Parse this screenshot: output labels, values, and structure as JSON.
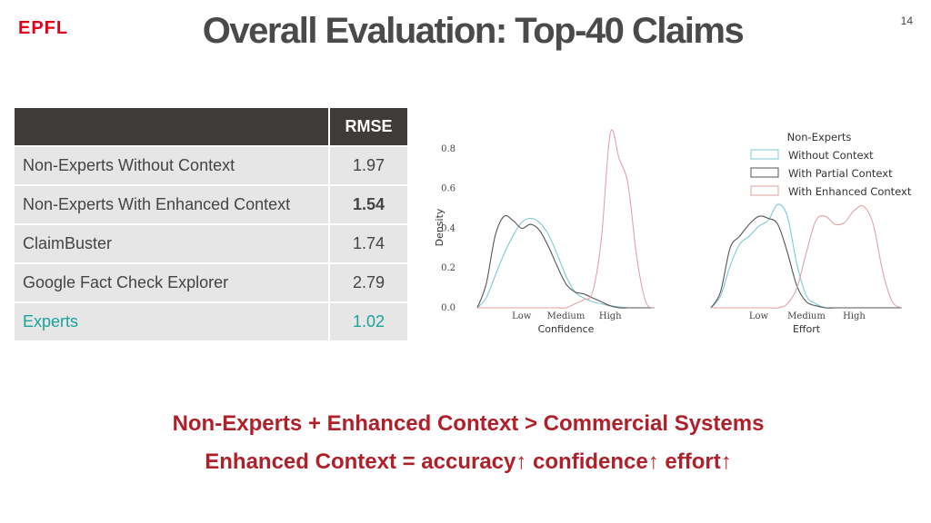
{
  "header": {
    "logo": "EPFL",
    "title": "Overall Evaluation: Top-40 Claims",
    "slide_number": "14"
  },
  "table": {
    "header": [
      "",
      "RMSE"
    ],
    "rows": [
      {
        "name": "Non-Experts Without Context",
        "rmse": "1.97"
      },
      {
        "name": "Non-Experts With Enhanced Context",
        "rmse": "1.54"
      },
      {
        "name": "ClaimBuster",
        "rmse": "1.74"
      },
      {
        "name": "Google Fact Check Explorer",
        "rmse": "2.79"
      },
      {
        "name": "Experts",
        "rmse": "1.02"
      }
    ]
  },
  "colors": {
    "without_context": "#7fc8d6",
    "partial_context": "#555555",
    "enhanced_context": "#e2a3a6",
    "experts_text": "#1aa39a",
    "conclusion_text": "#b0202a",
    "table_header_bg": "#3f3b39",
    "table_cell_bg": "#e6e6e6"
  },
  "chart_data": [
    {
      "type": "line",
      "subtype": "density",
      "xlabel": "Confidence",
      "ylabel": "Density",
      "x_ticks": [
        "Low",
        "Medium",
        "High"
      ],
      "y_ticks": [
        "0.0",
        "0.2",
        "0.4",
        "0.6",
        "0.8"
      ],
      "ylim": [
        0,
        0.9
      ],
      "xlim": [
        0,
        10
      ],
      "series": [
        {
          "name": "Without Context",
          "color": "#7fc8d6",
          "x": [
            0,
            0.5,
            1,
            1.5,
            2,
            2.5,
            3,
            3.5,
            4,
            4.5,
            5,
            5.5,
            6,
            6.5,
            7,
            7.5,
            8,
            8.5,
            9,
            9.5,
            10
          ],
          "y": [
            0.0,
            0.05,
            0.16,
            0.27,
            0.36,
            0.43,
            0.45,
            0.43,
            0.37,
            0.27,
            0.16,
            0.08,
            0.05,
            0.03,
            0.02,
            0.01,
            0.005,
            0.0,
            0.0,
            0.0,
            0.0
          ]
        },
        {
          "name": "With Partial Context",
          "color": "#555555",
          "x": [
            0,
            0.5,
            1,
            1.5,
            2,
            2.5,
            3,
            3.5,
            4,
            4.5,
            5,
            5.5,
            6,
            6.5,
            7,
            7.5,
            8,
            8.5,
            9,
            9.5,
            10
          ],
          "y": [
            0.0,
            0.12,
            0.36,
            0.46,
            0.44,
            0.4,
            0.42,
            0.39,
            0.31,
            0.21,
            0.12,
            0.08,
            0.07,
            0.05,
            0.03,
            0.01,
            0.0,
            0.0,
            0.0,
            0.0,
            0.0
          ]
        },
        {
          "name": "With Enhanced Context",
          "color": "#e2a3a6",
          "x": [
            0,
            0.5,
            1,
            1.5,
            2,
            2.5,
            3,
            3.5,
            4,
            4.5,
            5,
            5.5,
            6,
            6.5,
            7,
            7.5,
            8,
            8.5,
            9,
            9.5,
            10
          ],
          "y": [
            0.0,
            0.0,
            0.0,
            0.0,
            0.0,
            0.0,
            0.0,
            0.0,
            0.0,
            0.0,
            0.0,
            0.02,
            0.04,
            0.08,
            0.35,
            0.88,
            0.75,
            0.62,
            0.25,
            0.03,
            0.0
          ]
        }
      ]
    },
    {
      "type": "line",
      "subtype": "density",
      "xlabel": "Effort",
      "ylabel": "",
      "x_ticks": [
        "Low",
        "Medium",
        "High"
      ],
      "ylim": [
        0,
        0.9
      ],
      "xlim": [
        0,
        10
      ],
      "legend": {
        "title": "Non-Experts",
        "position": "top-right",
        "entries": [
          "Without Context",
          "With Partial Context",
          "With Enhanced Context"
        ]
      },
      "series": [
        {
          "name": "Without Context",
          "color": "#7fc8d6",
          "x": [
            0,
            0.5,
            1,
            1.5,
            2,
            2.5,
            3,
            3.5,
            4,
            4.5,
            5,
            5.5,
            6,
            6.5,
            7,
            7.5,
            8,
            8.5,
            9,
            9.5,
            10
          ],
          "y": [
            0.0,
            0.06,
            0.21,
            0.32,
            0.36,
            0.41,
            0.44,
            0.52,
            0.46,
            0.22,
            0.06,
            0.02,
            0.0,
            0.0,
            0.0,
            0.0,
            0.0,
            0.0,
            0.0,
            0.0,
            0.0
          ]
        },
        {
          "name": "With Partial Context",
          "color": "#555555",
          "x": [
            0,
            0.5,
            1,
            1.5,
            2,
            2.5,
            3,
            3.5,
            4,
            4.5,
            5,
            5.5,
            6,
            6.5,
            7,
            7.5,
            8,
            8.5,
            9,
            9.5,
            10
          ],
          "y": [
            0.0,
            0.08,
            0.3,
            0.36,
            0.42,
            0.46,
            0.45,
            0.42,
            0.28,
            0.11,
            0.03,
            0.01,
            0.0,
            0.0,
            0.0,
            0.0,
            0.0,
            0.0,
            0.0,
            0.0,
            0.0
          ]
        },
        {
          "name": "With Enhanced Context",
          "color": "#e2a3a6",
          "x": [
            0,
            0.5,
            1,
            1.5,
            2,
            2.5,
            3,
            3.5,
            4,
            4.5,
            5,
            5.5,
            6,
            6.5,
            7,
            7.5,
            8,
            8.5,
            9,
            9.5,
            10
          ],
          "y": [
            0.0,
            0.0,
            0.0,
            0.0,
            0.0,
            0.0,
            0.0,
            0.0,
            0.02,
            0.1,
            0.28,
            0.44,
            0.46,
            0.42,
            0.43,
            0.49,
            0.51,
            0.42,
            0.18,
            0.03,
            0.0
          ]
        }
      ]
    }
  ],
  "conclusions": [
    "Non-Experts + Enhanced Context > Commercial Systems",
    "Enhanced Context = accuracy↑ confidence↑ effort↑"
  ]
}
